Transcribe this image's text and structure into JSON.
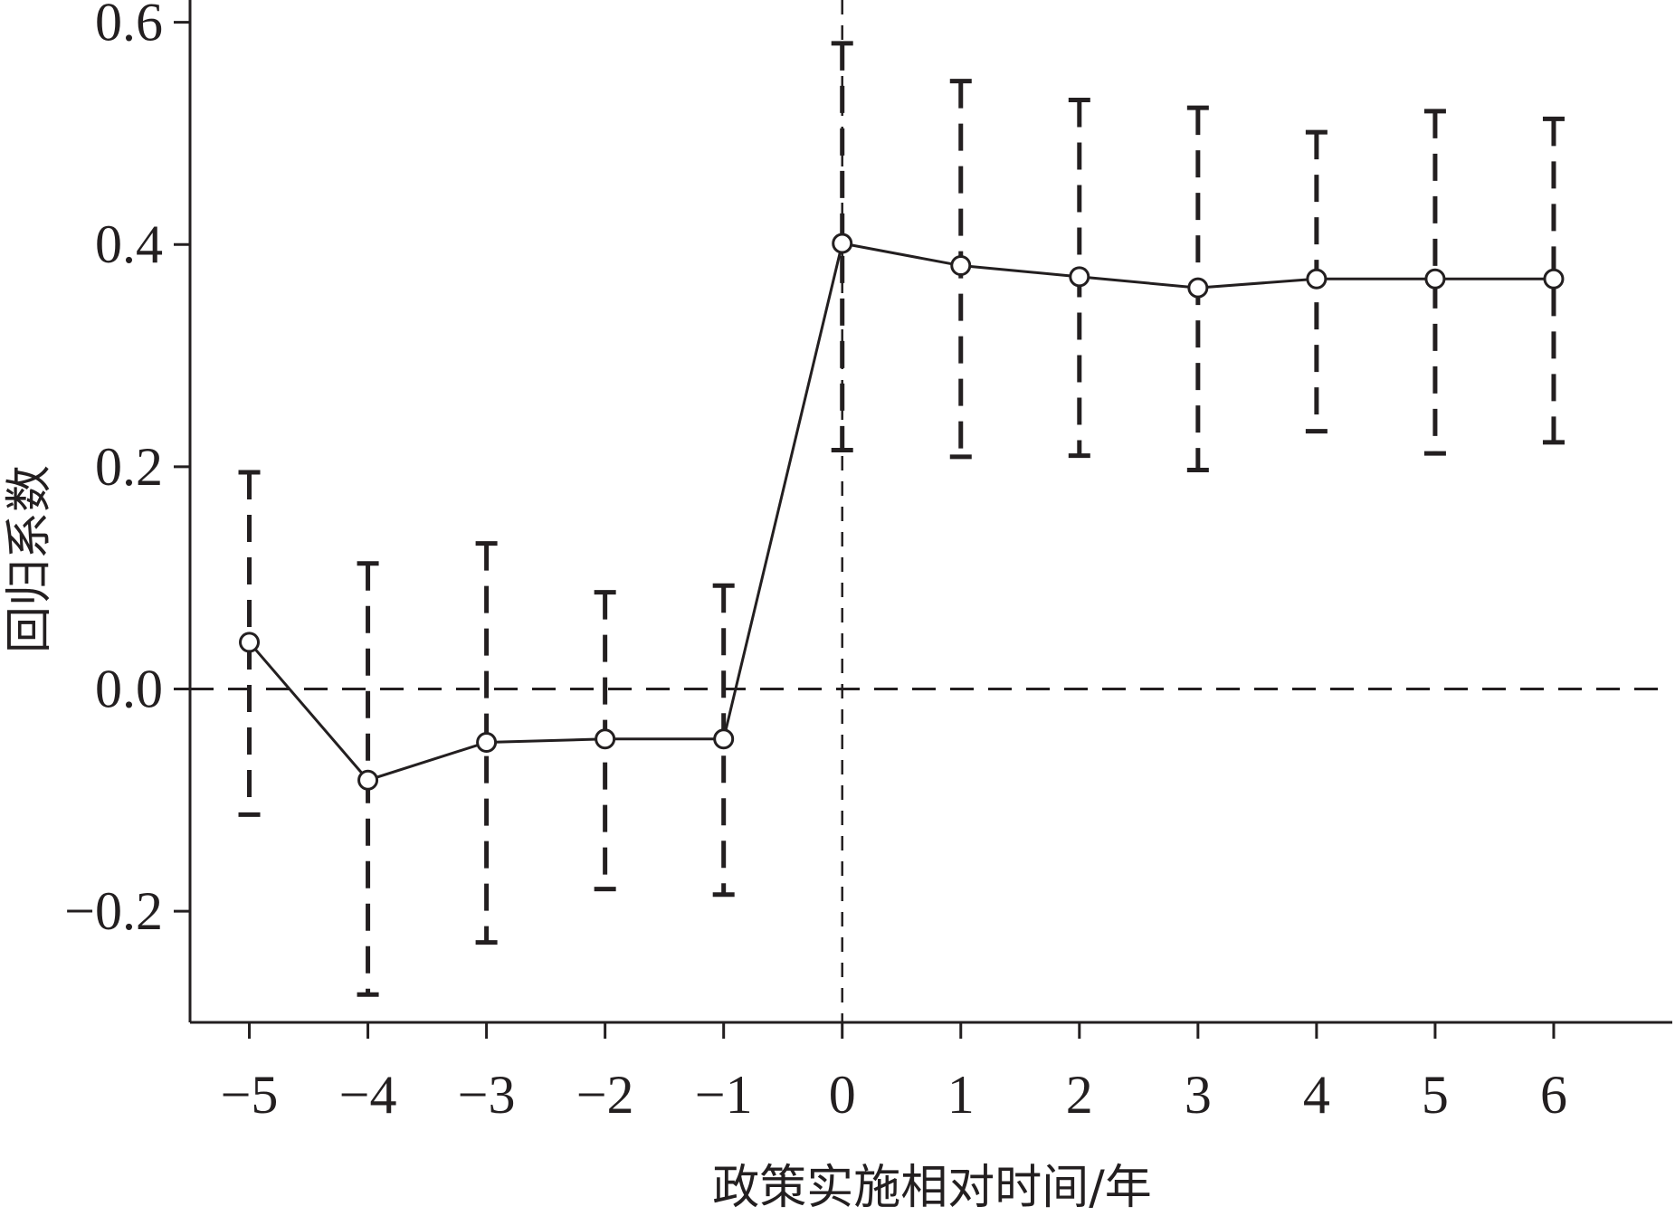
{
  "chart_data": {
    "type": "line",
    "title": "",
    "xlabel": "政策实施相对时间/年",
    "ylabel": "回归系数",
    "x": [
      -5,
      -4,
      -3,
      -2,
      -1,
      0,
      1,
      2,
      3,
      4,
      5,
      6
    ],
    "x_tick_labels": [
      "−5",
      "−4",
      "−3",
      "−2",
      "−1",
      "0",
      "1",
      "2",
      "3",
      "4",
      "5",
      "6"
    ],
    "y_ticks": [
      -0.2,
      0.0,
      0.2,
      0.4,
      0.6
    ],
    "y_tick_labels": [
      "−0.2",
      "0.0",
      "0.2",
      "0.4",
      "0.6"
    ],
    "xlim": [
      -5.5,
      7.0
    ],
    "ylim": [
      -0.3,
      0.62
    ],
    "series": [
      {
        "values": [
          0.042,
          -0.082,
          -0.048,
          -0.045,
          -0.045,
          0.401,
          0.381,
          0.371,
          0.361,
          0.369,
          0.369,
          0.369
        ],
        "ci_upper": [
          0.195,
          0.113,
          0.131,
          0.087,
          0.093,
          0.581,
          0.547,
          0.53,
          0.523,
          0.501,
          0.52,
          0.513
        ],
        "ci_lower": [
          -0.113,
          -0.275,
          -0.228,
          -0.18,
          -0.185,
          0.215,
          0.209,
          0.21,
          0.197,
          0.232,
          0.212,
          0.222
        ]
      }
    ],
    "reference_lines": {
      "horizontal_y": 0.0,
      "vertical_x": 0
    },
    "grid": false,
    "legend": "none",
    "colors": {
      "line": "#231f20",
      "axis": "#231f20",
      "background": "#ffffff"
    }
  }
}
